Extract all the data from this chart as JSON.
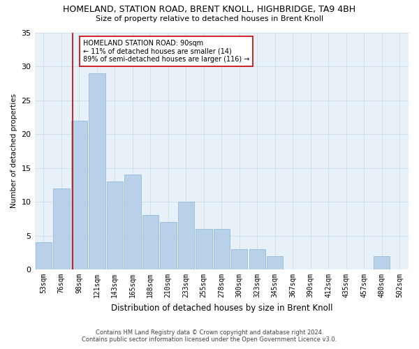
{
  "title": "HOMELAND, STATION ROAD, BRENT KNOLL, HIGHBRIDGE, TA9 4BH",
  "subtitle": "Size of property relative to detached houses in Brent Knoll",
  "xlabel": "Distribution of detached houses by size in Brent Knoll",
  "ylabel": "Number of detached properties",
  "categories": [
    "53sqm",
    "76sqm",
    "98sqm",
    "121sqm",
    "143sqm",
    "165sqm",
    "188sqm",
    "210sqm",
    "233sqm",
    "255sqm",
    "278sqm",
    "300sqm",
    "323sqm",
    "345sqm",
    "367sqm",
    "390sqm",
    "412sqm",
    "435sqm",
    "457sqm",
    "480sqm",
    "502sqm"
  ],
  "values": [
    4,
    12,
    22,
    29,
    13,
    14,
    8,
    7,
    10,
    6,
    6,
    3,
    3,
    2,
    0,
    0,
    0,
    0,
    0,
    2,
    0
  ],
  "bar_color": "#b8d0e8",
  "bar_edge_color": "#8ab4d4",
  "grid_color": "#d0dff0",
  "background_color": "#e8f0f8",
  "vline_color": "#cc0000",
  "annotation_text": "HOMELAND STATION ROAD: 90sqm\n← 11% of detached houses are smaller (14)\n89% of semi-detached houses are larger (116) →",
  "annotation_box_color": "#ffffff",
  "annotation_box_edge": "#cc0000",
  "ylim": [
    0,
    35
  ],
  "yticks": [
    0,
    5,
    10,
    15,
    20,
    25,
    30,
    35
  ],
  "footnote1": "Contains HM Land Registry data © Crown copyright and database right 2024.",
  "footnote2": "Contains public sector information licensed under the Open Government Licence v3.0."
}
